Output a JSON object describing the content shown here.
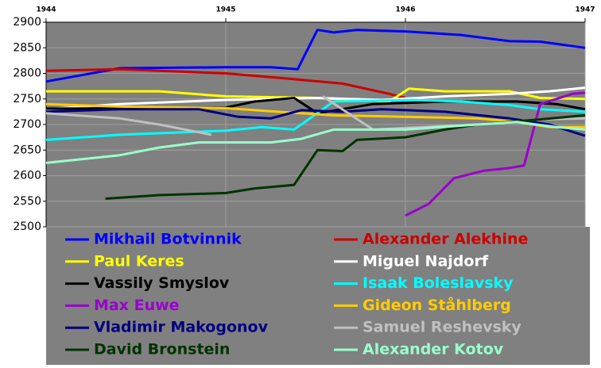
{
  "chart_data": {
    "type": "line",
    "xlim": [
      1944,
      1947
    ],
    "xticks": [
      1944,
      1945,
      1946,
      1947
    ],
    "ylim": [
      2500,
      2900
    ],
    "yticks": [
      2500,
      2550,
      2600,
      2650,
      2700,
      2750,
      2800,
      2850,
      2900
    ],
    "grid": true,
    "legend": "bottom",
    "series": [
      {
        "name": "Mikhail Botvinnik",
        "color": "#0000ff",
        "x": [
          1944,
          1944.41,
          1945,
          1945.25,
          1945.4,
          1945.51,
          1945.6,
          1945.73,
          1946,
          1946.31,
          1946.58,
          1946.75,
          1947
        ],
        "values": [
          2784,
          2810,
          2812,
          2812,
          2808,
          2885,
          2880,
          2885,
          2882,
          2875,
          2863,
          2862,
          2850
        ]
      },
      {
        "name": "Alexander Alekhine",
        "color": "#cc0000",
        "x": [
          1944,
          1944.41,
          1945,
          1945.34,
          1945.65,
          1945.91,
          1946
        ],
        "values": [
          2805,
          2808,
          2800,
          2790,
          2780,
          2760,
          2752
        ]
      },
      {
        "name": "Paul Keres",
        "color": "#ffff00",
        "x": [
          1944,
          1944.63,
          1945,
          1945.51,
          1945.91,
          1946.02,
          1946.22,
          1946.58,
          1946.75,
          1947
        ],
        "values": [
          2765,
          2765,
          2755,
          2752,
          2745,
          2770,
          2765,
          2765,
          2752,
          2750
        ]
      },
      {
        "name": "Miguel Najdorf",
        "color": "#ffffff",
        "x": [
          1944,
          1944.41,
          1945,
          1945.51,
          1945.87,
          1946.22,
          1946.58,
          1946.8,
          1947
        ],
        "values": [
          2730,
          2740,
          2748,
          2752,
          2748,
          2755,
          2760,
          2765,
          2772
        ]
      },
      {
        "name": "Vassily Smyslov",
        "color": "#000000",
        "x": [
          1944,
          1945,
          1945.16,
          1945.38,
          1945.51,
          1945.82,
          1946.22,
          1946.62,
          1946.84,
          1947
        ],
        "values": [
          2731,
          2733,
          2745,
          2752,
          2722,
          2740,
          2745,
          2745,
          2740,
          2730
        ]
      },
      {
        "name": "Isaak Boleslavsky",
        "color": "#00ffff",
        "x": [
          1944,
          1944.41,
          1945,
          1945.2,
          1945.38,
          1945.6,
          1946.04,
          1946.31,
          1946.58,
          1946.75,
          1947
        ],
        "values": [
          2670,
          2680,
          2688,
          2695,
          2690,
          2745,
          2748,
          2745,
          2738,
          2730,
          2725
        ]
      },
      {
        "name": "Max Euwe",
        "color": "#9900cc",
        "x": [
          1946,
          1946.13,
          1946.27,
          1946.44,
          1946.58,
          1946.66,
          1946.75,
          1946.93,
          1947
        ],
        "values": [
          2522,
          2545,
          2595,
          2610,
          2615,
          2620,
          2740,
          2760,
          2762
        ]
      },
      {
        "name": "Gideon Ståhlberg",
        "color": "#ffcc00",
        "x": [
          1944,
          1944.41,
          1945,
          1945.29,
          1945.6,
          1946,
          1946.4,
          1946.62,
          1946.8,
          1947
        ],
        "values": [
          2740,
          2735,
          2732,
          2725,
          2718,
          2715,
          2712,
          2705,
          2695,
          2695
        ]
      },
      {
        "name": "Vladimir Makogonov",
        "color": "#000080",
        "x": [
          1944,
          1944.41,
          1944.85,
          1945.07,
          1945.25,
          1945.42,
          1945.65,
          1945.87,
          1946.22,
          1946.58,
          1946.8,
          1947
        ],
        "values": [
          2725,
          2730,
          2730,
          2715,
          2712,
          2728,
          2725,
          2730,
          2725,
          2712,
          2700,
          2678
        ]
      },
      {
        "name": "Samuel Reshevsky",
        "color": "#c0c0c0",
        "x": [
          1944,
          1944.41,
          1944.63,
          1944.92,
          1945.3,
          1945.54,
          1945.82,
          1946.4,
          1946.75,
          1947
        ],
        "values": [
          2722,
          2712,
          2700,
          2680,
          null,
          2755,
          2690,
          2700,
          2710,
          2712
        ]
      },
      {
        "name": "David Bronstein",
        "color": "#003300",
        "x": [
          1944.33,
          1944.63,
          1945,
          1945.16,
          1945.38,
          1945.51,
          1945.65,
          1945.73,
          1946,
          1946.22,
          1946.4,
          1946.75,
          1947
        ],
        "values": [
          2555,
          2562,
          2566,
          2575,
          2582,
          2650,
          2648,
          2670,
          2675,
          2690,
          2700,
          2710,
          2718
        ]
      },
      {
        "name": "Alexander Kotov",
        "color": "#99ffcc",
        "x": [
          1944,
          1944.41,
          1944.63,
          1944.85,
          1945.25,
          1945.42,
          1945.6,
          1946,
          1946.4,
          1946.62,
          1946.84,
          1947
        ],
        "values": [
          2625,
          2640,
          2655,
          2665,
          2665,
          2672,
          2690,
          2690,
          2700,
          2705,
          2695,
          2690
        ]
      }
    ]
  }
}
